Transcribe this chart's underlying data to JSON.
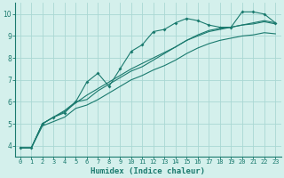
{
  "xlabel": "Humidex (Indice chaleur)",
  "bg_color": "#d4f0ec",
  "grid_color": "#aad8d3",
  "line_color": "#1a7a6e",
  "spine_color": "#1a7a6e",
  "xlim": [
    -0.5,
    23.5
  ],
  "ylim": [
    3.5,
    10.5
  ],
  "xticks": [
    0,
    1,
    2,
    3,
    4,
    5,
    6,
    7,
    8,
    9,
    10,
    11,
    12,
    13,
    14,
    15,
    16,
    17,
    18,
    19,
    20,
    21,
    22,
    23
  ],
  "yticks": [
    4,
    5,
    6,
    7,
    8,
    9,
    10
  ],
  "line1": [
    [
      0,
      3.9
    ],
    [
      1,
      3.9
    ],
    [
      2,
      5.0
    ],
    [
      3,
      5.3
    ],
    [
      4,
      5.5
    ],
    [
      5,
      6.0
    ],
    [
      6,
      6.9
    ],
    [
      7,
      7.3
    ],
    [
      8,
      6.7
    ],
    [
      9,
      7.5
    ],
    [
      10,
      8.3
    ],
    [
      11,
      8.6
    ],
    [
      12,
      9.2
    ],
    [
      13,
      9.3
    ],
    [
      14,
      9.6
    ],
    [
      15,
      9.8
    ],
    [
      16,
      9.7
    ],
    [
      17,
      9.5
    ],
    [
      18,
      9.4
    ],
    [
      19,
      9.4
    ],
    [
      20,
      10.1
    ],
    [
      21,
      10.1
    ],
    [
      22,
      10.0
    ],
    [
      23,
      9.6
    ]
  ],
  "line2": [
    [
      0,
      3.9
    ],
    [
      1,
      3.9
    ],
    [
      2,
      5.0
    ],
    [
      3,
      5.3
    ],
    [
      4,
      5.6
    ],
    [
      5,
      6.0
    ],
    [
      6,
      6.1
    ],
    [
      7,
      6.5
    ],
    [
      8,
      6.8
    ],
    [
      9,
      7.1
    ],
    [
      10,
      7.4
    ],
    [
      11,
      7.6
    ],
    [
      12,
      7.9
    ],
    [
      13,
      8.2
    ],
    [
      14,
      8.5
    ],
    [
      15,
      8.8
    ],
    [
      16,
      9.0
    ],
    [
      17,
      9.2
    ],
    [
      18,
      9.3
    ],
    [
      19,
      9.4
    ],
    [
      20,
      9.5
    ],
    [
      21,
      9.6
    ],
    [
      22,
      9.7
    ],
    [
      23,
      9.6
    ]
  ],
  "line3": [
    [
      0,
      3.9
    ],
    [
      1,
      3.9
    ],
    [
      2,
      5.0
    ],
    [
      3,
      5.3
    ],
    [
      4,
      5.55
    ],
    [
      5,
      5.95
    ],
    [
      6,
      6.3
    ],
    [
      7,
      6.6
    ],
    [
      8,
      6.9
    ],
    [
      9,
      7.2
    ],
    [
      10,
      7.5
    ],
    [
      11,
      7.75
    ],
    [
      12,
      8.0
    ],
    [
      13,
      8.25
    ],
    [
      14,
      8.5
    ],
    [
      15,
      8.8
    ],
    [
      16,
      9.05
    ],
    [
      17,
      9.25
    ],
    [
      18,
      9.35
    ],
    [
      19,
      9.4
    ],
    [
      20,
      9.5
    ],
    [
      21,
      9.55
    ],
    [
      22,
      9.65
    ],
    [
      23,
      9.55
    ]
  ],
  "line4": [
    [
      0,
      3.9
    ],
    [
      1,
      3.9
    ],
    [
      2,
      4.9
    ],
    [
      3,
      5.1
    ],
    [
      4,
      5.3
    ],
    [
      5,
      5.7
    ],
    [
      6,
      5.85
    ],
    [
      7,
      6.1
    ],
    [
      8,
      6.4
    ],
    [
      9,
      6.7
    ],
    [
      10,
      7.0
    ],
    [
      11,
      7.2
    ],
    [
      12,
      7.45
    ],
    [
      13,
      7.65
    ],
    [
      14,
      7.9
    ],
    [
      15,
      8.2
    ],
    [
      16,
      8.45
    ],
    [
      17,
      8.65
    ],
    [
      18,
      8.8
    ],
    [
      19,
      8.9
    ],
    [
      20,
      9.0
    ],
    [
      21,
      9.05
    ],
    [
      22,
      9.15
    ],
    [
      23,
      9.1
    ]
  ],
  "marker_size": 2.0,
  "line_width": 0.8,
  "tick_fontsize": 5.0,
  "xlabel_fontsize": 6.5
}
